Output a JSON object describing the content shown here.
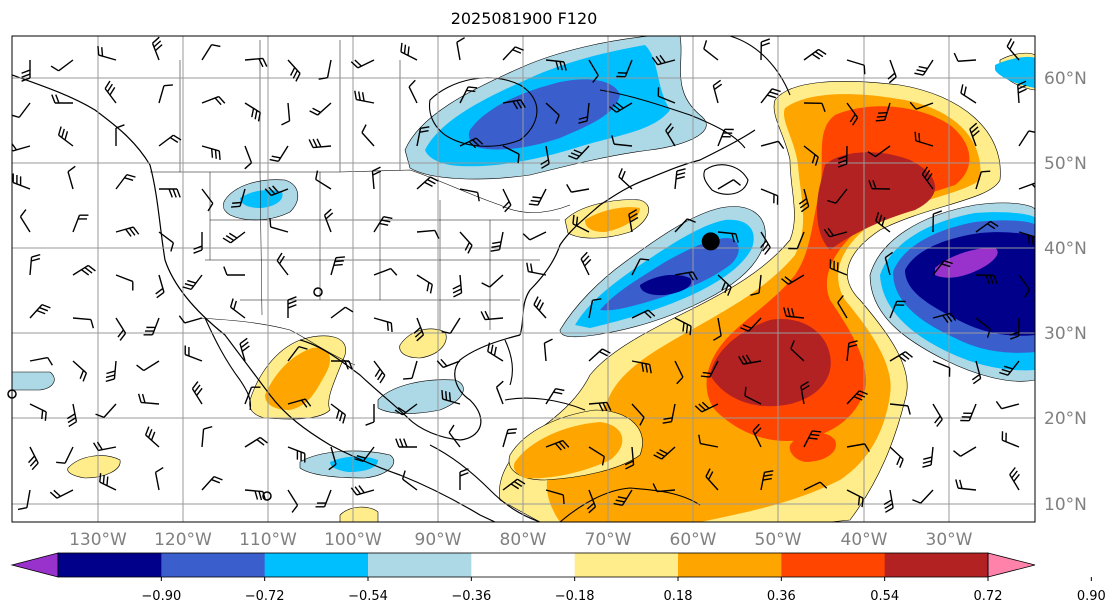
{
  "title": "2025081900 F120",
  "lon_labels": [
    "130°W",
    "120°W",
    "110°W",
    "100°W",
    "90°W",
    "80°W",
    "70°W",
    "60°W",
    "50°W",
    "40°W",
    "30°W"
  ],
  "lat_labels": [
    "60°N",
    "50°N",
    "40°N",
    "30°N",
    "20°N",
    "10°N"
  ],
  "colorbar": {
    "colors": [
      "#9932cc",
      "#00008b",
      "#3a5fcd",
      "#00bfff",
      "#add8e6",
      "#ffffff",
      "#ffec8b",
      "#ffa500",
      "#ff4500",
      "#b22222",
      "#ff82ab"
    ],
    "tick_labels": [
      "−0.90",
      "−0.72",
      "−0.54",
      "−0.36",
      "−0.18",
      "0.18",
      "0.36",
      "0.54",
      "0.72",
      "0.90"
    ]
  },
  "markers": [
    {
      "name": "low-center-marker",
      "lon": -58.0,
      "lat": 40.8
    }
  ]
}
